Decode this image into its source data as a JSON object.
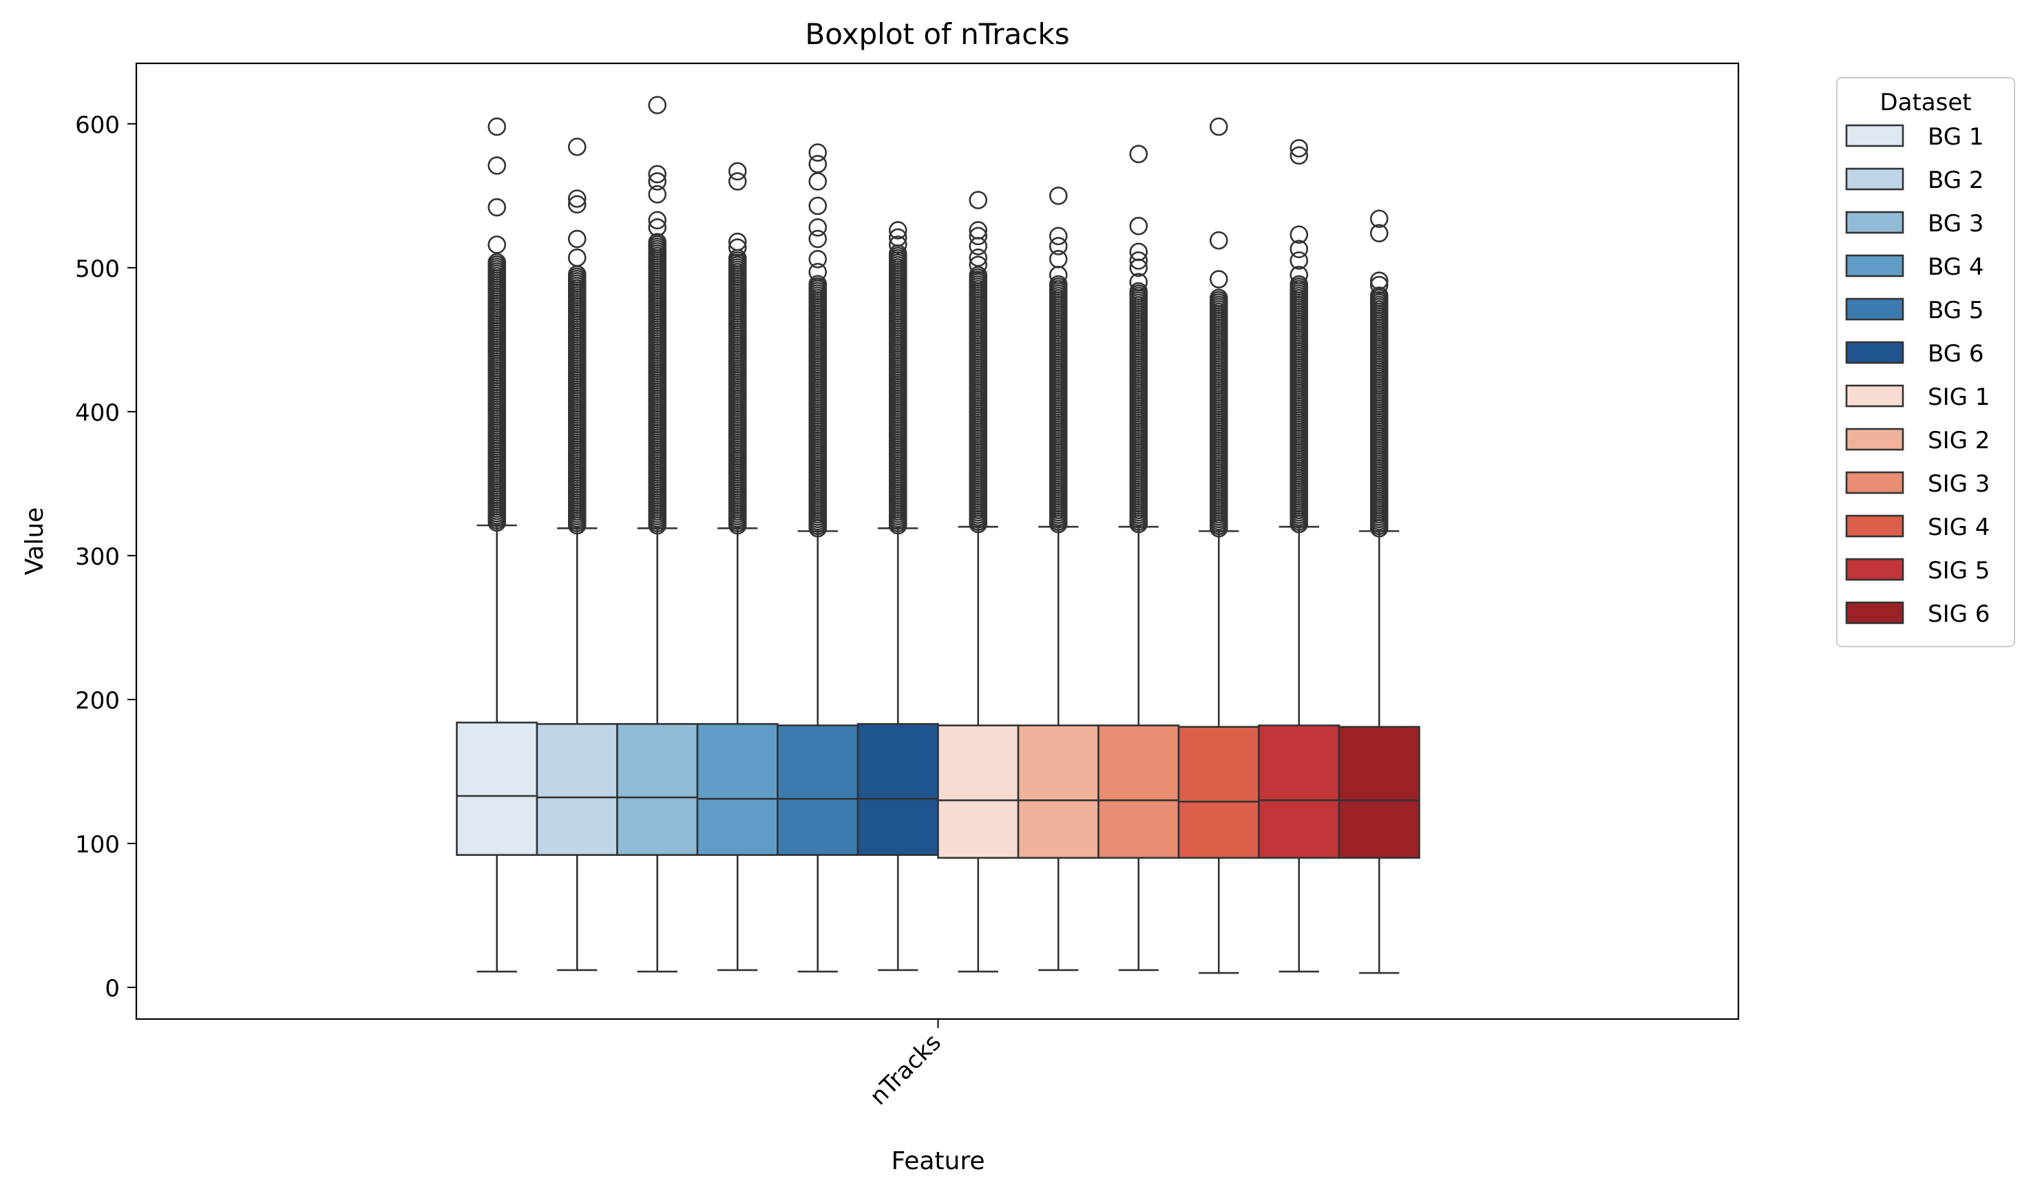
{
  "chart_data": {
    "type": "boxplot",
    "title": "Boxplot of nTracks",
    "xlabel": "Feature",
    "ylabel": "Value",
    "categories": [
      "nTracks"
    ],
    "ylim": [
      -22,
      642
    ],
    "yticks": [
      0,
      100,
      200,
      300,
      400,
      500,
      600
    ],
    "legend": {
      "title": "Dataset",
      "placement": "outside-right"
    },
    "series": [
      {
        "name": "BG 1",
        "color": "#dde8f3",
        "whislo": 11,
        "q1": 92,
        "med": 133,
        "q3": 184,
        "whishi": 321,
        "outlier_max": 505,
        "fliers": [
          516,
          542,
          571,
          598
        ]
      },
      {
        "name": "BG 2",
        "color": "#bfd5e8",
        "whislo": 12,
        "q1": 92,
        "med": 132,
        "q3": 183,
        "whishi": 319,
        "outlier_max": 497,
        "fliers": [
          507,
          520,
          544,
          548,
          584
        ]
      },
      {
        "name": "BG 3",
        "color": "#91bad6",
        "whislo": 11,
        "q1": 92,
        "med": 132,
        "q3": 183,
        "whishi": 319,
        "outlier_max": 518,
        "fliers": [
          528,
          533,
          551,
          560,
          565,
          613
        ]
      },
      {
        "name": "BG 4",
        "color": "#609dc6",
        "whislo": 12,
        "q1": 92,
        "med": 131,
        "q3": 183,
        "whishi": 319,
        "outlier_max": 507,
        "fliers": [
          514,
          518,
          560,
          567
        ]
      },
      {
        "name": "BG 5",
        "color": "#3c7bb0",
        "whislo": 11,
        "q1": 92,
        "med": 131,
        "q3": 182,
        "whishi": 317,
        "outlier_max": 490,
        "fliers": [
          497,
          506,
          520,
          528,
          543,
          560,
          572,
          580
        ]
      },
      {
        "name": "BG 6",
        "color": "#20548e",
        "whislo": 12,
        "q1": 92,
        "med": 131,
        "q3": 183,
        "whishi": 319,
        "outlier_max": 510,
        "fliers": [
          516,
          521,
          526
        ]
      },
      {
        "name": "SIG 1",
        "color": "#f8dcd2",
        "whislo": 11,
        "q1": 90,
        "med": 130,
        "q3": 182,
        "whishi": 320,
        "outlier_max": 495,
        "fliers": [
          502,
          507,
          515,
          522,
          526,
          547
        ]
      },
      {
        "name": "SIG 2",
        "color": "#f0b29a",
        "whislo": 12,
        "q1": 90,
        "med": 130,
        "q3": 182,
        "whishi": 320,
        "outlier_max": 490,
        "fliers": [
          495,
          506,
          515,
          522,
          550
        ]
      },
      {
        "name": "SIG 3",
        "color": "#e98d73",
        "whislo": 12,
        "q1": 90,
        "med": 130,
        "q3": 182,
        "whishi": 320,
        "outlier_max": 485,
        "fliers": [
          490,
          500,
          505,
          511,
          529,
          579
        ]
      },
      {
        "name": "SIG 4",
        "color": "#dc5f4b",
        "whislo": 10,
        "q1": 90,
        "med": 129,
        "q3": 181,
        "whishi": 317,
        "outlier_max": 480,
        "fliers": [
          492,
          519,
          598
        ]
      },
      {
        "name": "SIG 5",
        "color": "#c13538",
        "whislo": 11,
        "q1": 90,
        "med": 130,
        "q3": 182,
        "whishi": 320,
        "outlier_max": 490,
        "fliers": [
          495,
          505,
          513,
          523,
          578,
          583
        ]
      },
      {
        "name": "SIG 6",
        "color": "#9a2227",
        "whislo": 10,
        "q1": 90,
        "med": 130,
        "q3": 181,
        "whishi": 317,
        "outlier_max": 482,
        "fliers": [
          488,
          491,
          524,
          534
        ]
      }
    ]
  }
}
